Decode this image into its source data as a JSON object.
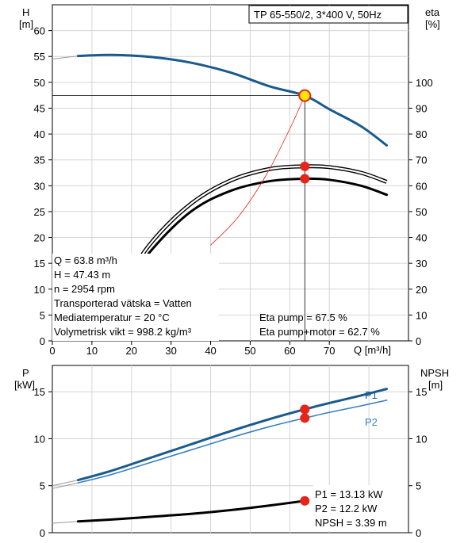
{
  "colors": {
    "blue": "#1a5a8c",
    "lightblue": "#3a7fbf",
    "red": "#e8231a",
    "yellow": "#ffe600"
  },
  "chart_data": [
    {
      "type": "line",
      "title": "TP 65-550/2, 3*400 V, 50Hz",
      "xlabel": "Q [m³/h]",
      "ylabel_left": "H",
      "ylabel_left_unit": "[m]",
      "ylabel_right": "eta",
      "ylabel_right_unit": "[%]",
      "xlim": [
        0,
        90
      ],
      "ylim_left": [
        0,
        65
      ],
      "ylim_right": [
        0,
        130
      ],
      "x_ticks": [
        0,
        10,
        20,
        30,
        40,
        50,
        60,
        70
      ],
      "y_ticks_left": [
        0,
        5,
        10,
        15,
        20,
        25,
        30,
        35,
        40,
        45,
        50,
        55,
        60
      ],
      "y_ticks_right": [
        0,
        10,
        20,
        30,
        40,
        50,
        60,
        70,
        80,
        90,
        100
      ],
      "grid": true,
      "series": [
        {
          "id": "head",
          "axis": "left",
          "color": "#1a5a8c",
          "width": 3,
          "x": [
            0,
            6.5,
            15,
            25,
            35,
            45,
            55,
            63.8,
            70,
            78,
            84.5
          ],
          "y": [
            54.5,
            55.1,
            55.3,
            54.9,
            53.8,
            51.9,
            49.2,
            47.43,
            44.8,
            41.5,
            37.8
          ],
          "ext_upto": 6.5
        },
        {
          "id": "eta_pump",
          "axis": "right",
          "color": "#000000",
          "width": 1.5,
          "double": true,
          "x": [
            17,
            25,
            35,
            45,
            55,
            63.8,
            70,
            78,
            84.5
          ],
          "y": [
            20,
            38,
            53,
            62,
            66.5,
            67.5,
            67.2,
            65,
            61.5
          ]
        },
        {
          "id": "eta_total",
          "axis": "right",
          "color": "#000000",
          "width": 3,
          "x": [
            17,
            25,
            35,
            45,
            55,
            63.8,
            70,
            78,
            84.5
          ],
          "y": [
            18,
            35,
            50,
            58,
            61.8,
            62.7,
            62.3,
            60,
            56.5
          ]
        },
        {
          "id": "system",
          "axis": "left",
          "color": "#e8231a",
          "width": 0.8,
          "x": [
            40,
            47,
            54,
            60,
            63.8
          ],
          "y": [
            18.5,
            24,
            32,
            41,
            47.43
          ]
        }
      ],
      "operating_point": {
        "q": 63.8,
        "h": 47.43,
        "eta_pump": 67.5,
        "eta_total": 62.7
      },
      "info_left": [
        "Q = 63.8 m³/h",
        "H = 47.43 m",
        "n = 2954 rpm",
        "Transporterad vätska = Vatten",
        "Mediatemperatur = 20 °C",
        "Volymetrisk vikt = 998.2 kg/m³"
      ],
      "info_right": [
        "Eta pump = 67.5 %",
        "Eta pump+motor = 62.7 %"
      ]
    },
    {
      "type": "line",
      "ylabel_left": "P",
      "ylabel_left_unit": "[kW]",
      "ylabel_right": "NPSH",
      "ylabel_right_unit": "[m]",
      "xlim": [
        0,
        90
      ],
      "ylim_left": [
        0,
        17.8
      ],
      "ylim_right": [
        0,
        17.8
      ],
      "y_ticks_left": [
        0,
        5,
        10,
        15
      ],
      "y_ticks_right": [
        0,
        5,
        10,
        15
      ],
      "grid": true,
      "series": [
        {
          "id": "P1",
          "name": "P1",
          "axis": "left",
          "color": "#1a5a8c",
          "width": 3,
          "x": [
            0,
            6.5,
            15,
            25,
            35,
            45,
            55,
            63.8,
            70,
            78,
            84.5
          ],
          "y": [
            5.0,
            5.6,
            6.6,
            8.0,
            9.4,
            10.8,
            12.1,
            13.13,
            13.8,
            14.6,
            15.3
          ],
          "ext_upto": 6.5
        },
        {
          "id": "P2",
          "name": "P2",
          "axis": "left",
          "color": "#3a7fbf",
          "width": 1.6,
          "x": [
            0,
            6.5,
            15,
            25,
            35,
            45,
            55,
            63.8,
            70,
            78,
            84.5
          ],
          "y": [
            4.7,
            5.3,
            6.2,
            7.5,
            8.8,
            10.1,
            11.3,
            12.2,
            12.8,
            13.5,
            14.1
          ],
          "ext_upto": 6.5
        },
        {
          "id": "NPSH",
          "axis": "right",
          "color": "#000000",
          "width": 3,
          "x": [
            0,
            6.5,
            15,
            25,
            35,
            45,
            55,
            63.8
          ],
          "y": [
            1.0,
            1.2,
            1.4,
            1.7,
            2.0,
            2.4,
            2.9,
            3.39
          ],
          "ext_upto": 6.5
        }
      ],
      "operating_point": {
        "q": 63.8,
        "P1": 13.13,
        "P2": 12.2,
        "NPSH": 3.39
      },
      "info_right": [
        "P1 = 13.13 kW",
        "P2 = 12.2 kW",
        "NPSH = 3.39 m"
      ]
    }
  ]
}
